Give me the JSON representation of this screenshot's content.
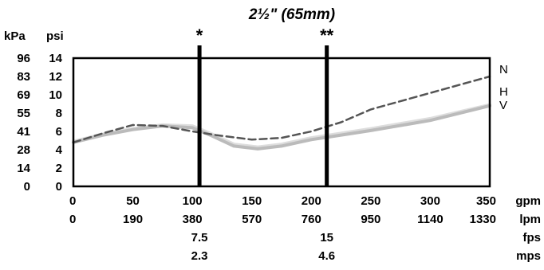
{
  "chart_data": {
    "type": "line",
    "title": "2½\" (65mm)",
    "x_units": [
      "gpm",
      "lpm",
      "fps",
      "mps"
    ],
    "x_ticks_gpm": [
      0,
      50,
      100,
      150,
      200,
      250,
      300,
      350
    ],
    "x_ticks_lpm": [
      0,
      190,
      380,
      570,
      760,
      950,
      1140,
      1330
    ],
    "velocity_ticks": [
      {
        "gpm": 106,
        "fps": "7.5",
        "mps": "2.3",
        "marker": "*"
      },
      {
        "gpm": 213,
        "fps": "15",
        "mps": "4.6",
        "marker": "**"
      }
    ],
    "y_units": [
      "kPa",
      "psi"
    ],
    "y_ticks_psi": [
      0,
      2,
      4,
      6,
      8,
      10,
      12,
      14
    ],
    "y_ticks_kpa": [
      0,
      14,
      28,
      41,
      55,
      69,
      83,
      96
    ],
    "xlim": [
      0,
      350
    ],
    "ylim": [
      0,
      14
    ],
    "grid": false,
    "series": [
      {
        "name": "N",
        "style": "dashed",
        "color": "#555555",
        "x": [
          0,
          25,
          50,
          75,
          100,
          120,
          150,
          175,
          200,
          225,
          250,
          300,
          350
        ],
        "y": [
          4.8,
          5.8,
          6.7,
          6.6,
          6.0,
          5.6,
          5.1,
          5.3,
          6.0,
          7.0,
          8.4,
          10.2,
          12.0
        ]
      },
      {
        "name": "H",
        "style": "solid",
        "color": "#bbbbbb",
        "x": [
          0,
          25,
          50,
          75,
          100,
          115,
          135,
          155,
          175,
          200,
          225,
          250,
          300,
          350
        ],
        "y": [
          4.8,
          5.6,
          6.2,
          6.6,
          6.4,
          5.6,
          4.4,
          4.1,
          4.4,
          5.1,
          5.6,
          6.1,
          7.2,
          8.8
        ]
      },
      {
        "name": "V",
        "style": "solid",
        "color": "#dddddd",
        "x": [
          0,
          25,
          50,
          75,
          100,
          115,
          135,
          155,
          175,
          200,
          225,
          250,
          300,
          350
        ],
        "y": [
          4.9,
          5.7,
          6.3,
          6.7,
          6.6,
          5.8,
          4.6,
          4.3,
          4.6,
          5.3,
          5.8,
          6.3,
          7.4,
          8.9
        ]
      }
    ]
  }
}
